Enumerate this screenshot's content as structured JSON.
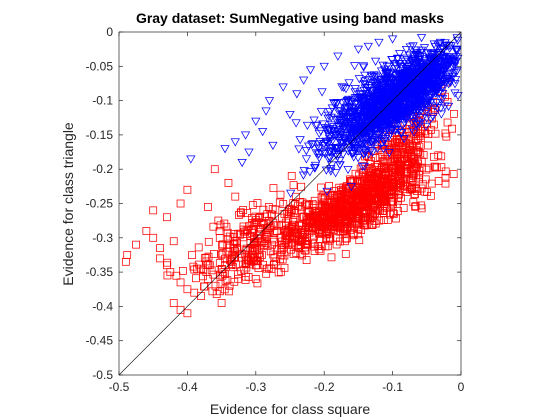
{
  "chart_data": {
    "type": "scatter",
    "title": "Gray dataset: SumNegative using band masks",
    "xlabel": "Evidence for class square",
    "ylabel": "Evidence for class triangle",
    "xlim": [
      -0.5,
      0
    ],
    "ylim": [
      -0.5,
      0
    ],
    "xticks": [
      -0.5,
      -0.4,
      -0.3,
      -0.2,
      -0.1,
      0
    ],
    "yticks": [
      -0.5,
      -0.45,
      -0.4,
      -0.35,
      -0.3,
      -0.25,
      -0.2,
      -0.15,
      -0.1,
      -0.05,
      0
    ],
    "xtick_labels": [
      "-0.5",
      "-0.4",
      "-0.3",
      "-0.2",
      "-0.1",
      "0"
    ],
    "ytick_labels": [
      "-0.5",
      "-0.45",
      "-0.4",
      "-0.35",
      "-0.3",
      "-0.25",
      "-0.2",
      "-0.15",
      "-0.1",
      "-0.05",
      "0"
    ],
    "grid": false,
    "reference_line": {
      "from": [
        -0.5,
        -0.5
      ],
      "to": [
        0,
        0
      ],
      "color": "#000000"
    },
    "series": [
      {
        "name": "square",
        "marker": "square",
        "color": "#ff0000",
        "clusters": [
          {
            "x": -0.16,
            "y": -0.255,
            "sx": 0.055,
            "sy": 0.032,
            "rho": 0.78,
            "count": 900
          },
          {
            "x": -0.09,
            "y": -0.17,
            "sx": 0.028,
            "sy": 0.03,
            "rho": 0.7,
            "count": 220
          },
          {
            "x": -0.31,
            "y": -0.31,
            "sx": 0.045,
            "sy": 0.035,
            "rho": 0.55,
            "count": 260
          }
        ],
        "points": [
          {
            "x": -0.49,
            "y": -0.335
          },
          {
            "x": -0.488,
            "y": -0.325
          },
          {
            "x": -0.475,
            "y": -0.31
          },
          {
            "x": -0.46,
            "y": -0.29
          },
          {
            "x": -0.45,
            "y": -0.3
          },
          {
            "x": -0.44,
            "y": -0.33
          },
          {
            "x": -0.43,
            "y": -0.34
          },
          {
            "x": -0.425,
            "y": -0.35
          },
          {
            "x": -0.41,
            "y": -0.365
          },
          {
            "x": -0.4,
            "y": -0.375
          },
          {
            "x": -0.39,
            "y": -0.38
          },
          {
            "x": -0.38,
            "y": -0.385
          },
          {
            "x": -0.42,
            "y": -0.395
          },
          {
            "x": -0.41,
            "y": -0.405
          },
          {
            "x": -0.4,
            "y": -0.41
          },
          {
            "x": -0.35,
            "y": -0.395
          },
          {
            "x": -0.3,
            "y": -0.36
          },
          {
            "x": -0.36,
            "y": -0.2
          },
          {
            "x": -0.34,
            "y": -0.22
          },
          {
            "x": -0.33,
            "y": -0.24
          },
          {
            "x": -0.43,
            "y": -0.27
          },
          {
            "x": -0.41,
            "y": -0.25
          },
          {
            "x": -0.45,
            "y": -0.26
          },
          {
            "x": -0.4,
            "y": -0.23
          },
          {
            "x": -0.37,
            "y": -0.255
          },
          {
            "x": -0.44,
            "y": -0.315
          },
          {
            "x": -0.42,
            "y": -0.305
          },
          {
            "x": -0.38,
            "y": -0.345
          },
          {
            "x": -0.37,
            "y": -0.36
          }
        ]
      },
      {
        "name": "triangle",
        "marker": "triangle-down",
        "color": "#0000ff",
        "clusters": [
          {
            "x": -0.11,
            "y": -0.105,
            "sx": 0.045,
            "sy": 0.038,
            "rho": 0.72,
            "count": 1300
          },
          {
            "x": -0.05,
            "y": -0.07,
            "sx": 0.025,
            "sy": 0.022,
            "rho": 0.6,
            "count": 350
          }
        ],
        "points": [
          {
            "x": -0.395,
            "y": -0.185
          },
          {
            "x": -0.345,
            "y": -0.17
          },
          {
            "x": -0.33,
            "y": -0.16
          },
          {
            "x": -0.32,
            "y": -0.19
          },
          {
            "x": -0.315,
            "y": -0.15
          },
          {
            "x": -0.31,
            "y": -0.175
          },
          {
            "x": -0.3,
            "y": -0.13
          },
          {
            "x": -0.29,
            "y": -0.145
          },
          {
            "x": -0.285,
            "y": -0.115
          },
          {
            "x": -0.28,
            "y": -0.1
          },
          {
            "x": -0.275,
            "y": -0.165
          },
          {
            "x": -0.26,
            "y": -0.08
          },
          {
            "x": -0.25,
            "y": -0.12
          },
          {
            "x": -0.24,
            "y": -0.09
          },
          {
            "x": -0.23,
            "y": -0.07
          },
          {
            "x": -0.22,
            "y": -0.055
          },
          {
            "x": -0.2,
            "y": -0.05
          },
          {
            "x": -0.18,
            "y": -0.035
          },
          {
            "x": -0.15,
            "y": -0.025
          },
          {
            "x": -0.12,
            "y": -0.015
          },
          {
            "x": -0.1,
            "y": -0.01
          },
          {
            "x": -0.07,
            "y": -0.02
          },
          {
            "x": -0.03,
            "y": -0.015
          },
          {
            "x": -0.02,
            "y": -0.05
          },
          {
            "x": -0.015,
            "y": -0.06
          }
        ]
      }
    ]
  }
}
